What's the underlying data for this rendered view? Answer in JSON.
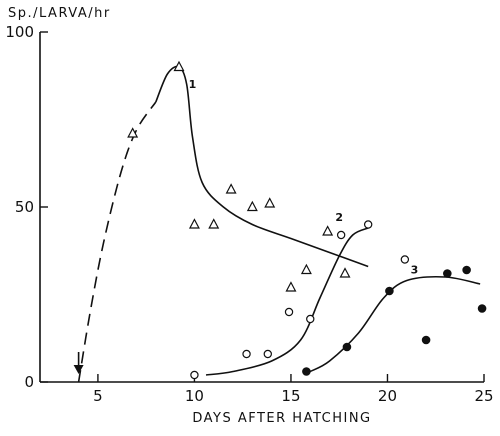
{
  "chart_data": {
    "type": "scatter",
    "title": "",
    "ylabel": "Sp./LARVA/hr",
    "xlabel": "DAYS AFTER HATCHING",
    "xlim": [
      2,
      25
    ],
    "ylim": [
      0,
      100
    ],
    "x_ticks": [
      5,
      10,
      15,
      20,
      25
    ],
    "y_ticks": [
      0,
      50,
      100
    ],
    "grid": false,
    "arrow_day": 4,
    "series": [
      {
        "name": "1",
        "marker": "triangle-open",
        "points": [
          [
            6.8,
            71
          ],
          [
            9.2,
            90
          ],
          [
            10,
            45
          ],
          [
            11,
            45
          ],
          [
            11.9,
            55
          ],
          [
            13,
            50
          ],
          [
            13.9,
            51
          ],
          [
            15,
            27
          ],
          [
            15.8,
            32
          ],
          [
            16.9,
            43
          ],
          [
            17.8,
            31
          ]
        ],
        "curve": [
          [
            8,
            80
          ],
          [
            8.6,
            88
          ],
          [
            9.2,
            90
          ],
          [
            9.6,
            85
          ],
          [
            9.9,
            70
          ],
          [
            10.4,
            57
          ],
          [
            11.5,
            50
          ],
          [
            13,
            45
          ],
          [
            15,
            41
          ],
          [
            17,
            37
          ],
          [
            19,
            33
          ]
        ],
        "dashed_curve": [
          [
            4,
            0
          ],
          [
            4.6,
            20
          ],
          [
            5.3,
            40
          ],
          [
            6.2,
            60
          ],
          [
            7,
            72
          ],
          [
            8,
            80
          ]
        ]
      },
      {
        "name": "2",
        "marker": "circle-open",
        "points": [
          [
            10,
            2
          ],
          [
            12.7,
            8
          ],
          [
            13.8,
            8
          ],
          [
            14.9,
            20
          ],
          [
            16,
            18
          ],
          [
            17.6,
            42
          ],
          [
            19,
            45
          ],
          [
            20.9,
            35
          ]
        ],
        "curve": [
          [
            10.6,
            2
          ],
          [
            12,
            3
          ],
          [
            14,
            6
          ],
          [
            15.5,
            12
          ],
          [
            16.5,
            24
          ],
          [
            17.5,
            36
          ],
          [
            18.2,
            42
          ],
          [
            19,
            44
          ]
        ]
      },
      {
        "name": "3",
        "marker": "circle-filled",
        "points": [
          [
            15.8,
            3
          ],
          [
            17.9,
            10
          ],
          [
            20.1,
            26
          ],
          [
            22,
            12
          ],
          [
            23.1,
            31
          ],
          [
            24.1,
            32
          ],
          [
            24.9,
            21
          ]
        ],
        "curve": [
          [
            16,
            3
          ],
          [
            17,
            6
          ],
          [
            18.5,
            14
          ],
          [
            19.8,
            24
          ],
          [
            21,
            29
          ],
          [
            23,
            30
          ],
          [
            24.8,
            28
          ]
        ]
      }
    ]
  }
}
